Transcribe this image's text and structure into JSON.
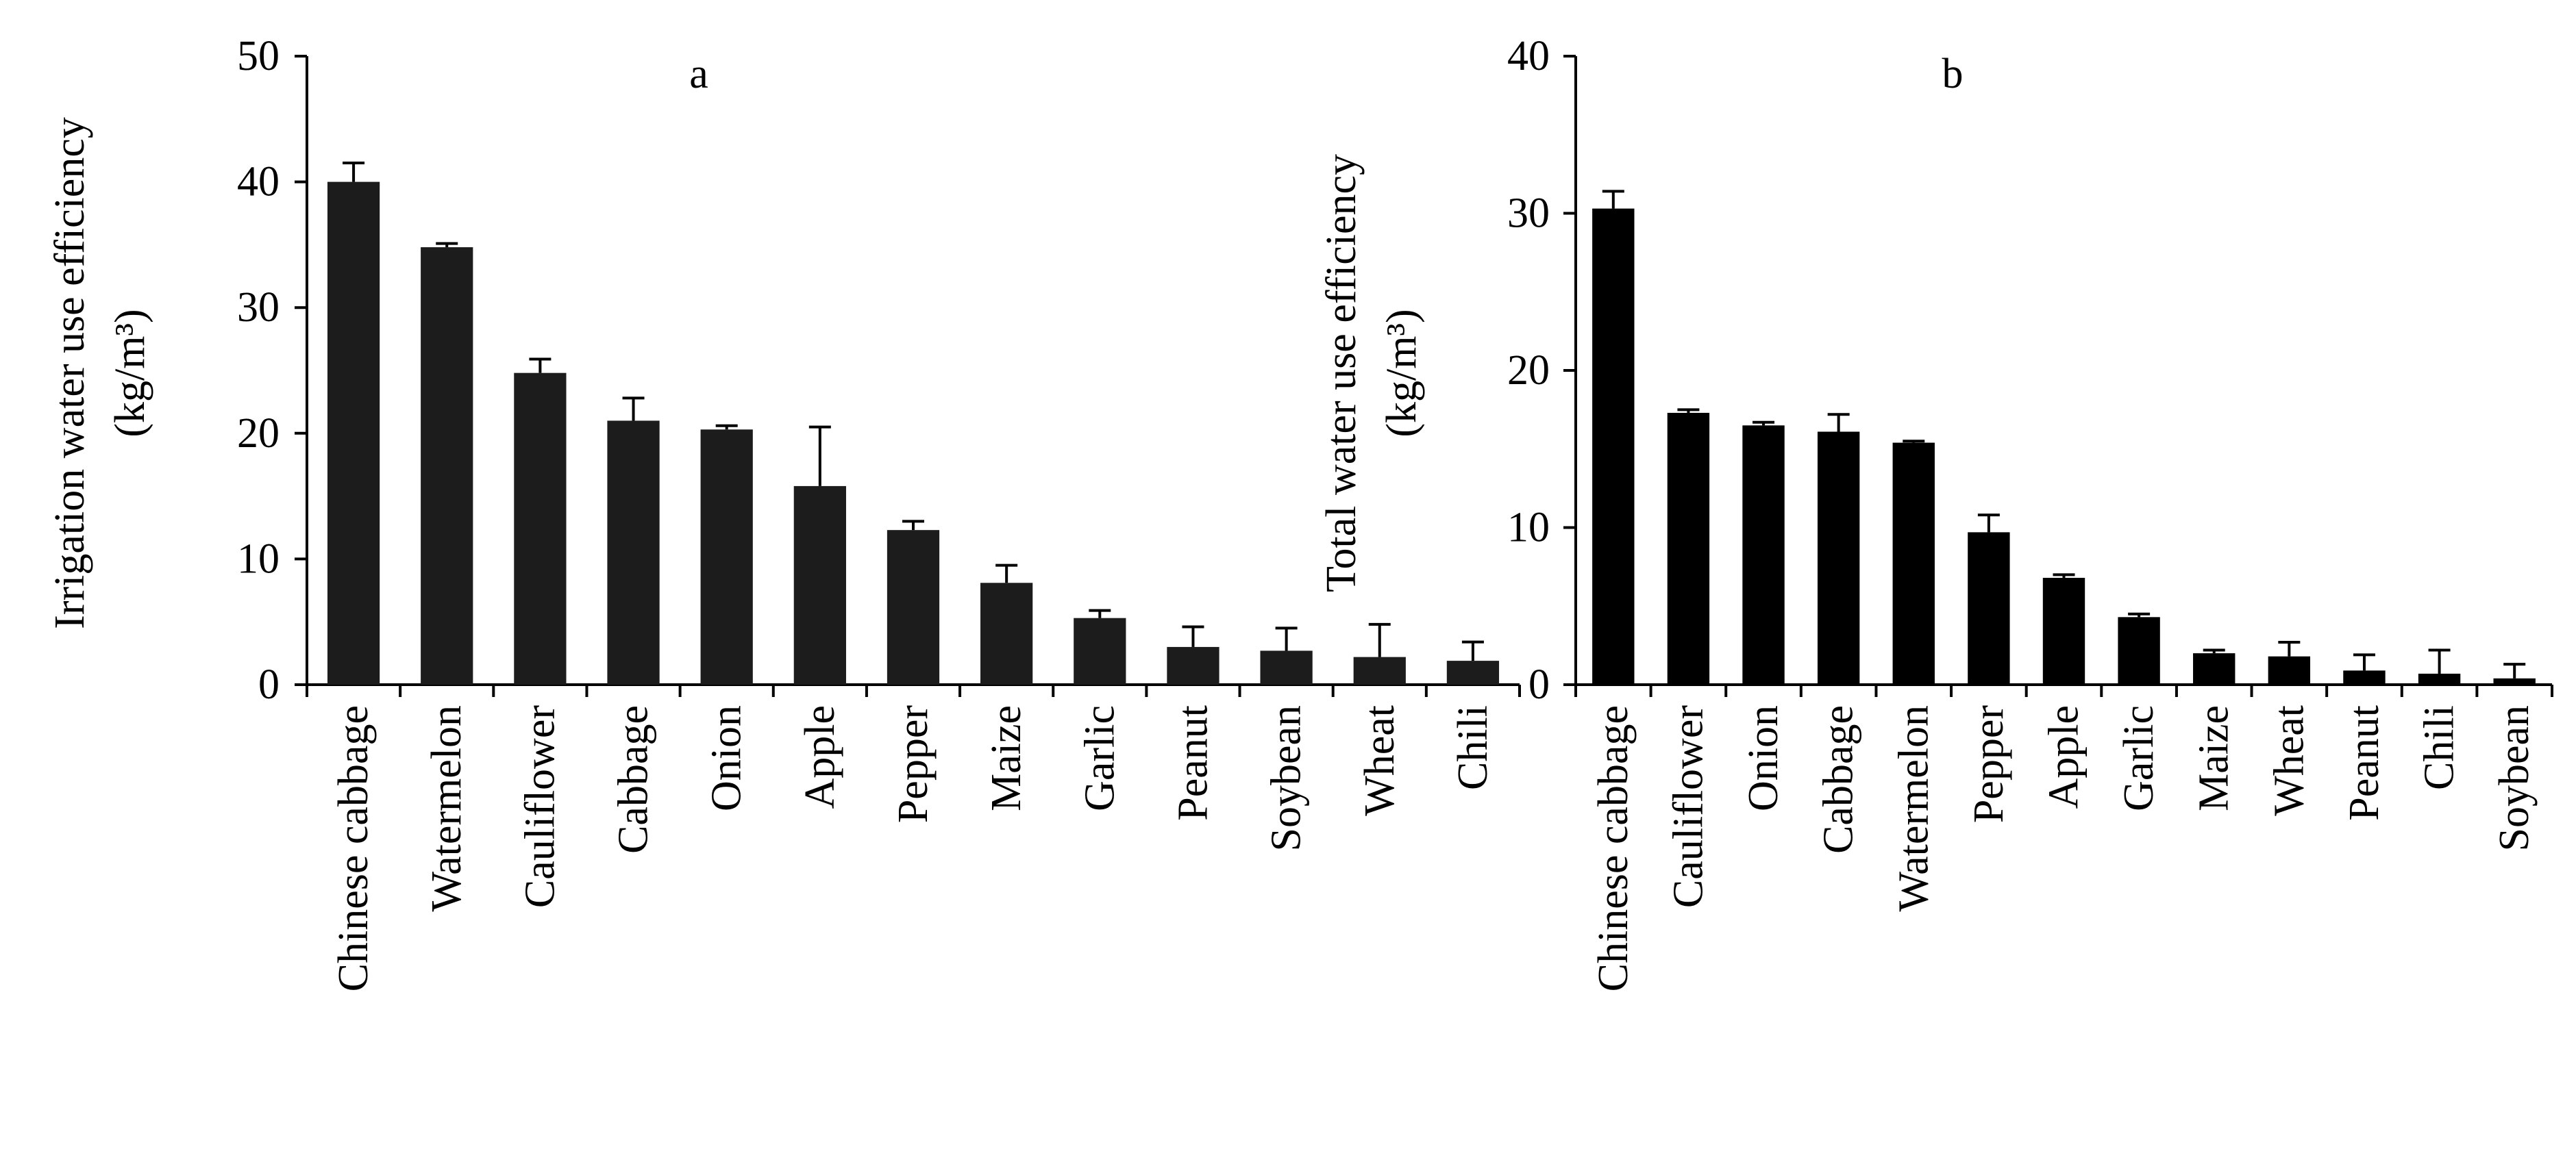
{
  "chart_data": [
    {
      "type": "bar",
      "panel_label": "a",
      "ylabel_line1": "Irrigation water use efficiency",
      "ylabel_line2": "(kg/m³)",
      "ylim": [
        0,
        50
      ],
      "yticks": [
        0,
        10,
        20,
        30,
        40,
        50
      ],
      "categories": [
        "Chinese cabbage",
        "Watermelon",
        "Cauliflower",
        "Cabbage",
        "Onion",
        "Apple",
        "Pepper",
        "Maize",
        "Garlic",
        "Peanut",
        "Soybean",
        "Wheat",
        "Chili"
      ],
      "values": [
        40.0,
        34.8,
        24.8,
        21.0,
        20.3,
        15.8,
        12.3,
        8.1,
        5.3,
        3.0,
        2.7,
        2.2,
        1.9
      ],
      "errors": [
        1.5,
        0.3,
        1.1,
        1.8,
        0.3,
        4.7,
        0.7,
        1.4,
        0.6,
        1.6,
        1.8,
        2.6,
        1.5
      ],
      "bar_color": "#1c1c1c",
      "grid": false,
      "legend": "none"
    },
    {
      "type": "bar",
      "panel_label": "b",
      "ylabel_line1": "Total water  use efficiency",
      "ylabel_line2": "(kg/m³)",
      "ylim": [
        0,
        40
      ],
      "yticks": [
        0,
        10,
        20,
        30,
        40
      ],
      "categories": [
        "Chinese cabbage",
        "Cauliflower",
        "Onion",
        "Cabbage",
        "Watermelon",
        "Pepper",
        "Apple",
        "Garlic",
        "Maize",
        "Wheat",
        "Peanut",
        "Chili",
        "Soybean"
      ],
      "values": [
        30.3,
        17.3,
        16.5,
        16.1,
        15.4,
        9.7,
        6.8,
        4.3,
        2.0,
        1.8,
        0.9,
        0.7,
        0.4
      ],
      "errors": [
        1.1,
        0.2,
        0.2,
        1.1,
        0.1,
        1.1,
        0.2,
        0.2,
        0.2,
        0.9,
        1.0,
        1.5,
        0.9
      ],
      "bar_color": "#000000",
      "grid": false,
      "legend": "none"
    }
  ]
}
